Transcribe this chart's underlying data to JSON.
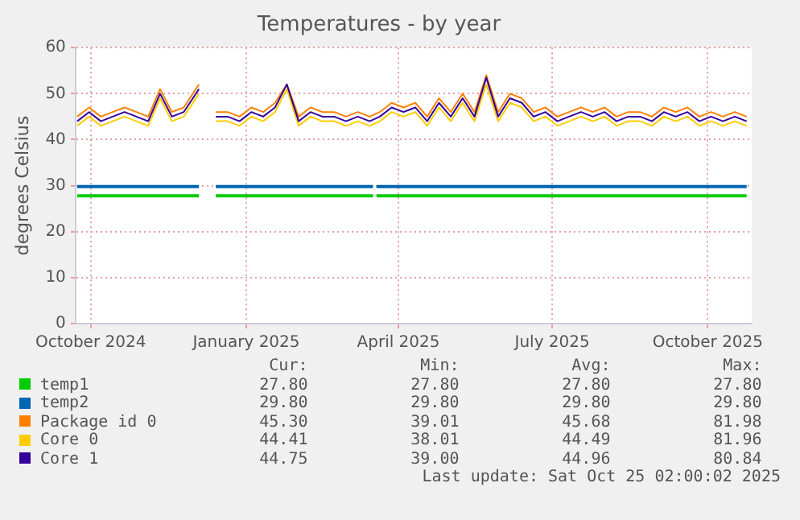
{
  "chart_data": {
    "type": "line",
    "title": "Temperatures - by year",
    "ylabel": "degrees Celsius",
    "x": [
      "2024-09-23",
      "2024-09-30",
      "2024-10-07",
      "2024-10-14",
      "2024-10-21",
      "2024-10-28",
      "2024-11-04",
      "2024-11-11",
      "2024-11-18",
      "2024-11-25",
      "2024-12-04",
      "2024-12-09",
      "2024-12-14",
      "2024-12-21",
      "2024-12-28",
      "2025-01-04",
      "2025-01-11",
      "2025-01-18",
      "2025-01-25",
      "2025-02-01",
      "2025-02-08",
      "2025-02-15",
      "2025-02-22",
      "2025-03-01",
      "2025-03-08",
      "2025-03-15",
      "2025-03-21",
      "2025-03-28",
      "2025-04-04",
      "2025-04-11",
      "2025-04-18",
      "2025-04-25",
      "2025-05-02",
      "2025-05-09",
      "2025-05-16",
      "2025-05-23",
      "2025-05-30",
      "2025-06-06",
      "2025-06-13",
      "2025-06-20",
      "2025-06-27",
      "2025-07-04",
      "2025-07-11",
      "2025-07-18",
      "2025-07-25",
      "2025-08-01",
      "2025-08-08",
      "2025-08-15",
      "2025-08-22",
      "2025-08-29",
      "2025-09-05",
      "2025-09-12",
      "2025-09-19",
      "2025-09-26",
      "2025-10-03",
      "2025-10-10",
      "2025-10-17",
      "2025-10-24"
    ],
    "series": [
      {
        "name": "temp1",
        "color": "#00cc00",
        "x": [
          "2024-09-23",
          "2024-12-04",
          "2024-12-09",
          "2024-12-14",
          "2025-03-17",
          "2025-03-18",
          "2025-03-19",
          "2025-10-24"
        ],
        "values": [
          27.8,
          27.8,
          null,
          27.8,
          27.8,
          null,
          27.8,
          27.8
        ]
      },
      {
        "name": "temp2",
        "color": "#0066b3",
        "x": [
          "2024-09-23",
          "2024-12-04",
          "2024-12-09",
          "2024-12-14",
          "2025-03-17",
          "2025-03-18",
          "2025-03-19",
          "2025-10-24"
        ],
        "values": [
          29.8,
          29.8,
          null,
          29.8,
          29.8,
          null,
          29.8,
          29.8
        ]
      },
      {
        "name": "Package id 0",
        "color": "#ff8000",
        "values": [
          45,
          47,
          45,
          46,
          47,
          46,
          45,
          51,
          46,
          47,
          52,
          null,
          46,
          46,
          45,
          47,
          46,
          48,
          52,
          45,
          47,
          46,
          46,
          45,
          46,
          45,
          46,
          48,
          47,
          48,
          45,
          49,
          46,
          50,
          46,
          54,
          46,
          50,
          49,
          46,
          47,
          45,
          46,
          47,
          46,
          47,
          45,
          46,
          46,
          45,
          47,
          46,
          47,
          45,
          46,
          45,
          46,
          45
        ]
      },
      {
        "name": "Core 0",
        "color": "#ffcc00",
        "values": [
          43,
          45,
          43,
          44,
          45,
          44,
          43,
          49,
          44,
          45,
          50,
          null,
          44,
          44,
          43,
          45,
          44,
          46,
          51,
          43,
          45,
          44,
          44,
          43,
          44,
          43,
          44,
          46,
          45,
          46,
          43,
          47,
          44,
          48,
          44,
          52,
          44,
          48,
          47,
          44,
          45,
          43,
          44,
          45,
          44,
          45,
          43,
          44,
          44,
          43,
          45,
          44,
          45,
          43,
          44,
          43,
          44,
          43
        ]
      },
      {
        "name": "Core 1",
        "color": "#330099",
        "values": [
          44,
          46,
          44,
          45,
          46,
          45,
          44,
          50,
          45,
          46,
          51,
          null,
          45,
          45,
          44,
          46,
          45,
          47,
          52,
          44,
          46,
          45,
          45,
          44,
          45,
          44,
          45,
          47,
          46,
          47,
          44,
          48,
          45,
          49,
          45,
          53.5,
          45,
          49,
          48,
          45,
          46,
          44,
          45,
          46,
          45,
          46,
          44,
          45,
          45,
          44,
          46,
          45,
          46,
          44,
          45,
          44,
          45,
          44
        ]
      }
    ],
    "xlim": [
      "2024-09-22",
      "2025-10-27"
    ],
    "xticks": [
      {
        "value": "2024-10-01",
        "label": "October 2024"
      },
      {
        "value": "2025-01-01",
        "label": "January 2025"
      },
      {
        "value": "2025-04-01",
        "label": "April 2025"
      },
      {
        "value": "2025-07-01",
        "label": "July 2025"
      },
      {
        "value": "2025-10-01",
        "label": "October 2025"
      }
    ],
    "ylim": [
      0,
      60
    ],
    "yticks": [
      0,
      10,
      20,
      30,
      40,
      50,
      60
    ],
    "grid": true,
    "legend": "bottom",
    "marker": "none",
    "line_style": "solid",
    "annotations": [
      "Cur:",
      "Min:",
      "Avg:",
      "Max:",
      "27.80",
      "27.80",
      "27.80",
      "27.80",
      "29.80",
      "29.80",
      "29.80",
      "29.80",
      "45.30",
      "39.01",
      "45.68",
      "81.98",
      "44.41",
      "38.01",
      "44.49",
      "81.96",
      "44.75",
      "39.00",
      "44.96",
      "80.84",
      "Last update: Sat Oct 25 02:00:02 2025"
    ]
  }
}
